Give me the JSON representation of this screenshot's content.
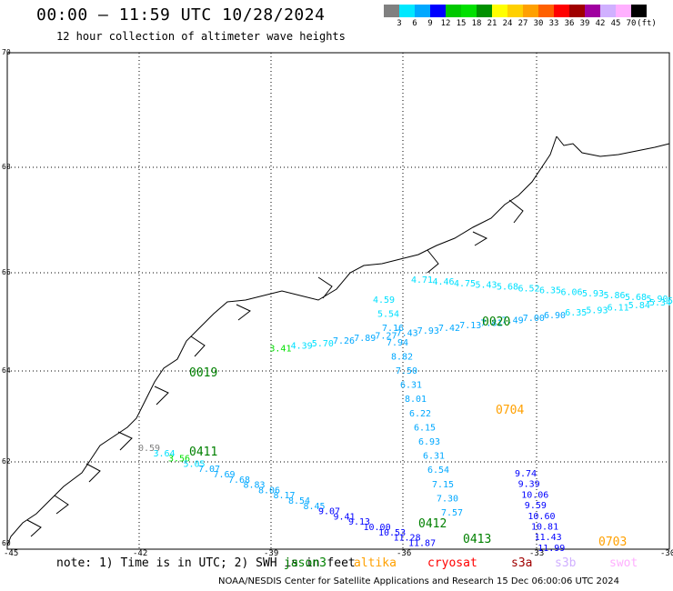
{
  "header": {
    "title": "00:00 – 11:59 UTC 10/28/2024",
    "subtitle": "12 hour collection of altimeter wave heights"
  },
  "color_scale": {
    "unit": "(ft)",
    "labels": [
      "3",
      "6",
      "9",
      "12",
      "15",
      "18",
      "21",
      "24",
      "27",
      "30",
      "33",
      "36",
      "39",
      "42",
      "45",
      "70"
    ],
    "colors": [
      "#808080",
      "#00e8ff",
      "#00a8ff",
      "#0000ff",
      "#00c800",
      "#00e000",
      "#009000",
      "#ffff00",
      "#ffd000",
      "#ffa000",
      "#ff6000",
      "#ff0000",
      "#a00000",
      "#a000a0",
      "#d0b0ff",
      "#ffb0ff",
      "#000000"
    ]
  },
  "axes": {
    "lat_labels": [
      "70",
      "68",
      "66",
      "64",
      "62"
    ],
    "lon_labels": [
      "-45",
      "-42",
      "-39",
      "-36",
      "-33",
      "-30"
    ],
    "corner_label": "60"
  },
  "tracks": [
    {
      "pass": "0020",
      "pass_color": "#008000",
      "points": [
        {
          "v": "4.71",
          "c": "#00e0ff"
        },
        {
          "v": "4.46",
          "c": "#00e0ff"
        },
        {
          "v": "4.75",
          "c": "#00e0ff"
        },
        {
          "v": "5.43",
          "c": "#00e0ff"
        },
        {
          "v": "5.68",
          "c": "#00e0ff"
        },
        {
          "v": "6.52",
          "c": "#00e0ff"
        },
        {
          "v": "6.35",
          "c": "#00e0ff"
        },
        {
          "v": "6.06",
          "c": "#00e0ff"
        },
        {
          "v": "5.93",
          "c": "#00e0ff"
        },
        {
          "v": "5.86",
          "c": "#00e0ff"
        },
        {
          "v": "5.68",
          "c": "#00e0ff"
        },
        {
          "v": "5.90",
          "c": "#00e0ff"
        },
        {
          "v": "5.",
          "c": "#00e0ff"
        }
      ]
    },
    {
      "pass": "0020b",
      "pass_color": "#008000",
      "points": [
        {
          "v": "5.34",
          "c": "#00e0ff"
        },
        {
          "v": "5.84",
          "c": "#00e0ff"
        },
        {
          "v": "6.11",
          "c": "#00e0ff"
        },
        {
          "v": "5.93",
          "c": "#00e0ff"
        },
        {
          "v": "6.35",
          "c": "#00e0ff"
        },
        {
          "v": "6.90",
          "c": "#00a8ff"
        },
        {
          "v": "7.00",
          "c": "#00a8ff"
        },
        {
          "v": "7.49",
          "c": "#00a8ff"
        },
        {
          "v": "7.81",
          "c": "#00a8ff"
        },
        {
          "v": "7.13",
          "c": "#00a8ff"
        },
        {
          "v": "7.42",
          "c": "#00a8ff"
        },
        {
          "v": "7.93",
          "c": "#00a8ff"
        },
        {
          "v": "7.43",
          "c": "#00a8ff"
        },
        {
          "v": "7.27",
          "c": "#00a8ff"
        },
        {
          "v": "7.89",
          "c": "#00a8ff"
        },
        {
          "v": "7.26",
          "c": "#00a8ff"
        },
        {
          "v": "5.70",
          "c": "#00e0ff"
        },
        {
          "v": "4.39",
          "c": "#00e0ff"
        },
        {
          "v": "3.41",
          "c": "#00e000"
        }
      ]
    },
    {
      "pass": "0704",
      "pass_color": "#ffa000",
      "points": [
        {
          "v": "4.59",
          "c": "#00e0ff"
        },
        {
          "v": "5.54",
          "c": "#00e0ff"
        },
        {
          "v": "7.16",
          "c": "#00a8ff"
        },
        {
          "v": "7.94",
          "c": "#00a8ff"
        },
        {
          "v": "8.82",
          "c": "#00a8ff"
        },
        {
          "v": "7.50",
          "c": "#00a8ff"
        },
        {
          "v": "6.31",
          "c": "#00a8ff"
        },
        {
          "v": "8.01",
          "c": "#00a8ff"
        },
        {
          "v": "6.22",
          "c": "#00a8ff"
        },
        {
          "v": "6.15",
          "c": "#00a8ff"
        },
        {
          "v": "6.93",
          "c": "#00a8ff"
        },
        {
          "v": "6.31",
          "c": "#00a8ff"
        },
        {
          "v": "6.54",
          "c": "#00a8ff"
        },
        {
          "v": "7.15",
          "c": "#00a8ff"
        },
        {
          "v": "7.30",
          "c": "#00a8ff"
        },
        {
          "v": "7.57",
          "c": "#00a8ff"
        }
      ]
    },
    {
      "pass": "0703",
      "pass_color": "#ffa000",
      "points": [
        {
          "v": "9.74",
          "c": "#0000ff"
        },
        {
          "v": "9.39",
          "c": "#0000ff"
        },
        {
          "v": "10.06",
          "c": "#0000ff"
        },
        {
          "v": "9.59",
          "c": "#0000ff"
        },
        {
          "v": "10.60",
          "c": "#0000ff"
        },
        {
          "v": "10.81",
          "c": "#0000ff"
        },
        {
          "v": "11.43",
          "c": "#0000ff"
        },
        {
          "v": "11.99",
          "c": "#0000ff"
        }
      ]
    },
    {
      "pass": "0411",
      "pass_color": "#008000",
      "points": [
        {
          "v": "0.59",
          "c": "#808080"
        },
        {
          "v": "3.64",
          "c": "#00e0ff"
        },
        {
          "v": "3.56",
          "c": "#00e000"
        },
        {
          "v": "5.05",
          "c": "#00e0ff"
        },
        {
          "v": "7.07",
          "c": "#00a8ff"
        },
        {
          "v": "7.69",
          "c": "#00a8ff"
        },
        {
          "v": "7.68",
          "c": "#00a8ff"
        },
        {
          "v": "8.83",
          "c": "#00a8ff"
        },
        {
          "v": "8.06",
          "c": "#00a8ff"
        },
        {
          "v": "8.17",
          "c": "#00a8ff"
        },
        {
          "v": "8.54",
          "c": "#00a8ff"
        },
        {
          "v": "8.45",
          "c": "#00a8ff"
        },
        {
          "v": "9.07",
          "c": "#0000ff"
        },
        {
          "v": "9.41",
          "c": "#0000ff"
        },
        {
          "v": "9.13",
          "c": "#0000ff"
        },
        {
          "v": "10.00",
          "c": "#0000ff"
        },
        {
          "v": "10.53",
          "c": "#0000ff"
        },
        {
          "v": "11.28",
          "c": "#0000ff"
        },
        {
          "v": "11.87",
          "c": "#0000ff"
        }
      ]
    }
  ],
  "pass_labels": [
    {
      "label": "0020",
      "c": "#008000"
    },
    {
      "label": "0019",
      "c": "#008000"
    },
    {
      "label": "0704",
      "c": "#ffa000"
    },
    {
      "label": "0411",
      "c": "#008000"
    },
    {
      "label": "0412",
      "c": "#008000"
    },
    {
      "label": "0413",
      "c": "#008000"
    },
    {
      "label": "0703",
      "c": "#ffa000"
    }
  ],
  "footer": {
    "note": "note:  1) Time is in UTC; 2) SWH is in feet",
    "credit": "NOAA/NESDIS Center for Satellite Applications and Research    15 Dec 06:00:06 UTC 2024",
    "satellites": [
      {
        "name": "jason3",
        "color": "#008000"
      },
      {
        "name": "altika",
        "color": "#ffa000"
      },
      {
        "name": "cryosat",
        "color": "#ff0000"
      },
      {
        "name": "s3a",
        "color": "#a00000"
      },
      {
        "name": "s3b",
        "color": "#d0b0ff"
      },
      {
        "name": "swot",
        "color": "#ffb0ff"
      }
    ]
  }
}
